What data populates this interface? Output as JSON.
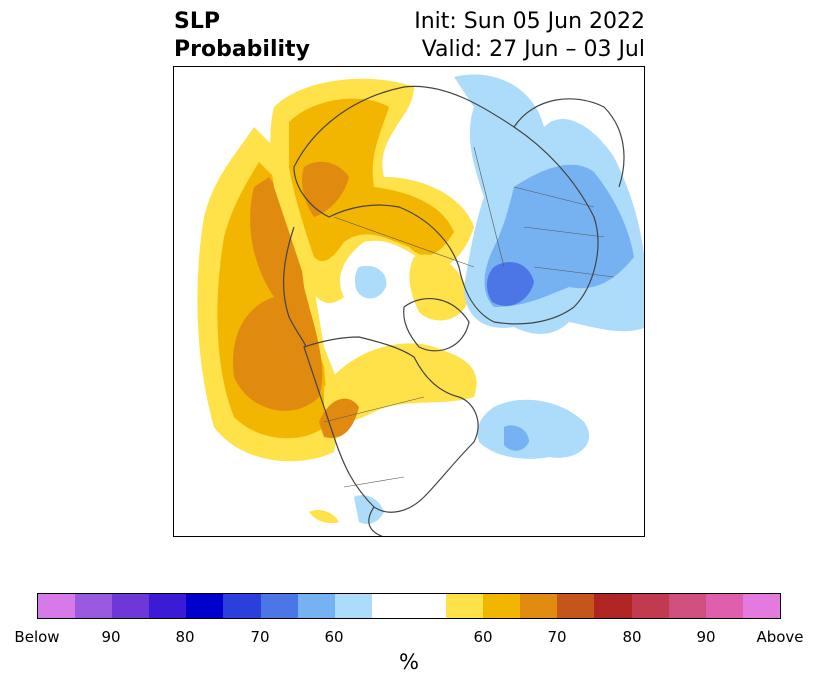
{
  "title": {
    "left": [
      "SLP",
      "Probability"
    ],
    "right": [
      "Init: Sun 05 Jun 2022",
      "Valid: 27 Jun – 03 Jul"
    ]
  },
  "colorbar": {
    "unit": "%",
    "colors": [
      "#d779e8",
      "#9a5ae0",
      "#6e38d9",
      "#3b1bd6",
      "#0000cc",
      "#2a3fdc",
      "#4c76e6",
      "#76b1f2",
      "#acdcfa",
      "#ffffff",
      "#ffe14a",
      "#f2b600",
      "#e08b10",
      "#c4561a",
      "#b02424",
      "#c23a50",
      "#cf4f7e",
      "#df5fad",
      "#e47ae0"
    ],
    "ticks": [
      "Below",
      "90",
      "80",
      "70",
      "60",
      "60",
      "70",
      "80",
      "90",
      "Above"
    ]
  },
  "colors": {
    "land_outline": "#444444",
    "above_light": "#ffe14a",
    "above_mid": "#f2b600",
    "above_dark": "#e08b10",
    "above_darker": "#c4561a",
    "below_light": "#acdcfa",
    "below_mid": "#76b1f2",
    "below_dark": "#4c76e6"
  }
}
